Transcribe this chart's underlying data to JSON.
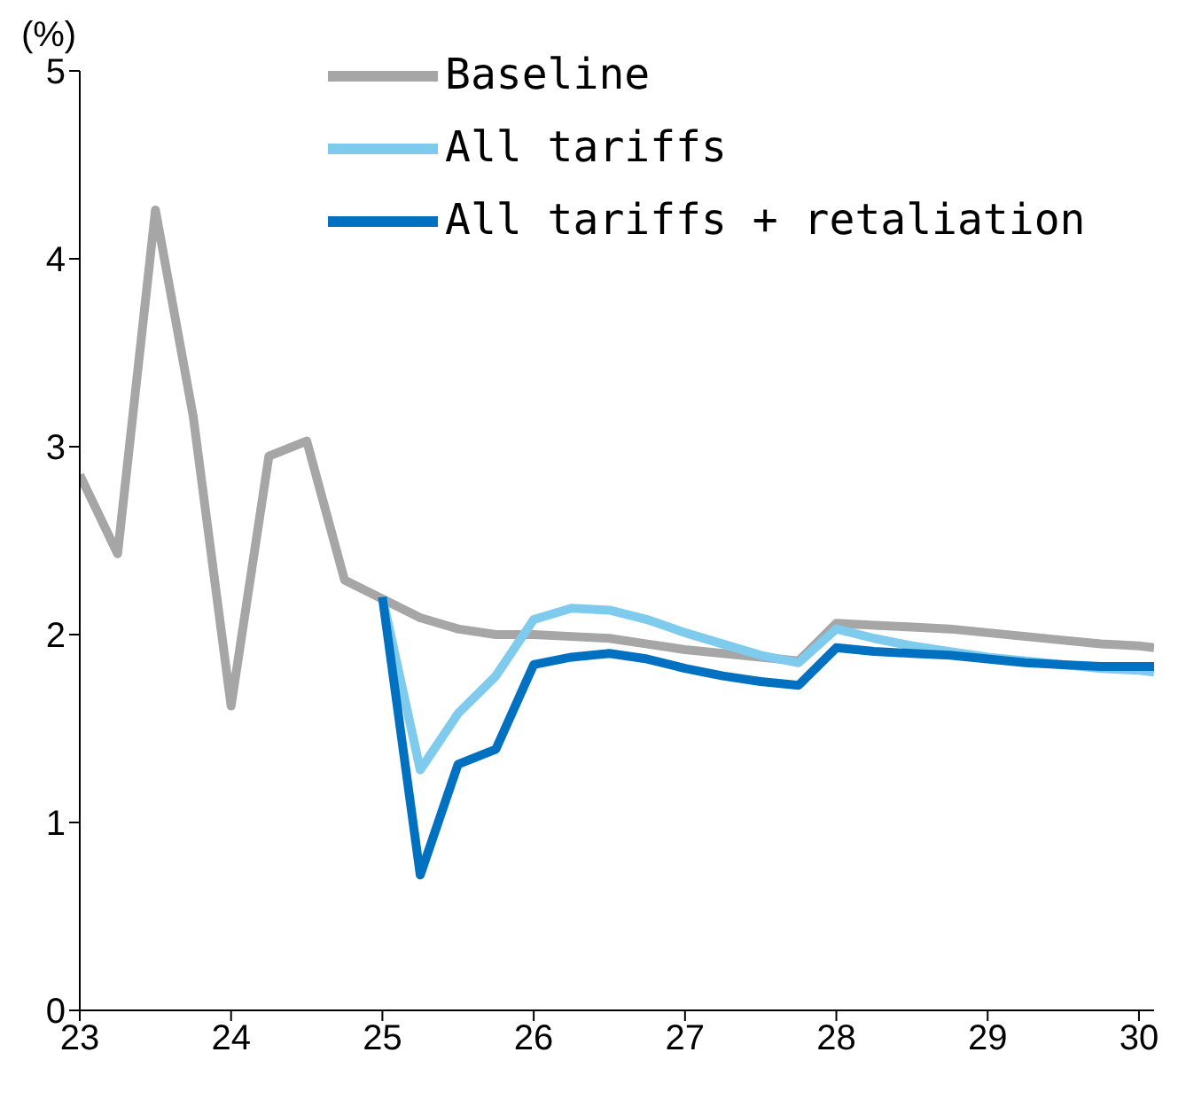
{
  "chart_data": {
    "type": "line",
    "ylabel": "(%)",
    "x": [
      23,
      23.25,
      23.5,
      23.75,
      24,
      24.25,
      24.5,
      24.75,
      25,
      25.25,
      25.5,
      25.75,
      26,
      26.25,
      26.5,
      26.75,
      27,
      27.25,
      27.5,
      27.75,
      28,
      28.25,
      28.5,
      28.75,
      29,
      29.25,
      29.5,
      29.75,
      30,
      30.1
    ],
    "series": [
      {
        "name": "Baseline",
        "color": "#a6a6a6",
        "values": [
          2.85,
          2.43,
          4.26,
          3.16,
          1.62,
          2.95,
          3.03,
          2.29,
          2.19,
          2.09,
          2.03,
          2.0,
          2.0,
          1.99,
          1.98,
          1.95,
          1.92,
          1.9,
          1.88,
          1.86,
          2.06,
          2.05,
          2.04,
          2.03,
          2.01,
          1.99,
          1.97,
          1.95,
          1.94,
          1.93
        ]
      },
      {
        "name": "All tariffs",
        "color": "#7ecbee",
        "values": [
          null,
          null,
          null,
          null,
          null,
          null,
          null,
          null,
          2.2,
          1.28,
          1.58,
          1.78,
          2.08,
          2.14,
          2.13,
          2.08,
          2.01,
          1.95,
          1.89,
          1.85,
          2.03,
          1.98,
          1.94,
          1.91,
          1.88,
          1.86,
          1.84,
          1.82,
          1.81,
          1.8
        ]
      },
      {
        "name": "All tariffs + retaliation",
        "color": "#0070c0",
        "values": [
          null,
          null,
          null,
          null,
          null,
          null,
          null,
          null,
          2.2,
          0.72,
          1.31,
          1.39,
          1.84,
          1.88,
          1.9,
          1.87,
          1.82,
          1.78,
          1.75,
          1.73,
          1.93,
          1.91,
          1.9,
          1.89,
          1.87,
          1.85,
          1.84,
          1.83,
          1.83,
          1.83
        ]
      }
    ],
    "xlim": [
      23,
      30.1
    ],
    "xticks": [
      23,
      24,
      25,
      26,
      27,
      28,
      29,
      30
    ],
    "ylim": [
      0,
      5
    ],
    "yticks": [
      0,
      1,
      2,
      3,
      4,
      5
    ],
    "grid": false,
    "legend": "top",
    "marker": "none",
    "line_style": "solid"
  }
}
